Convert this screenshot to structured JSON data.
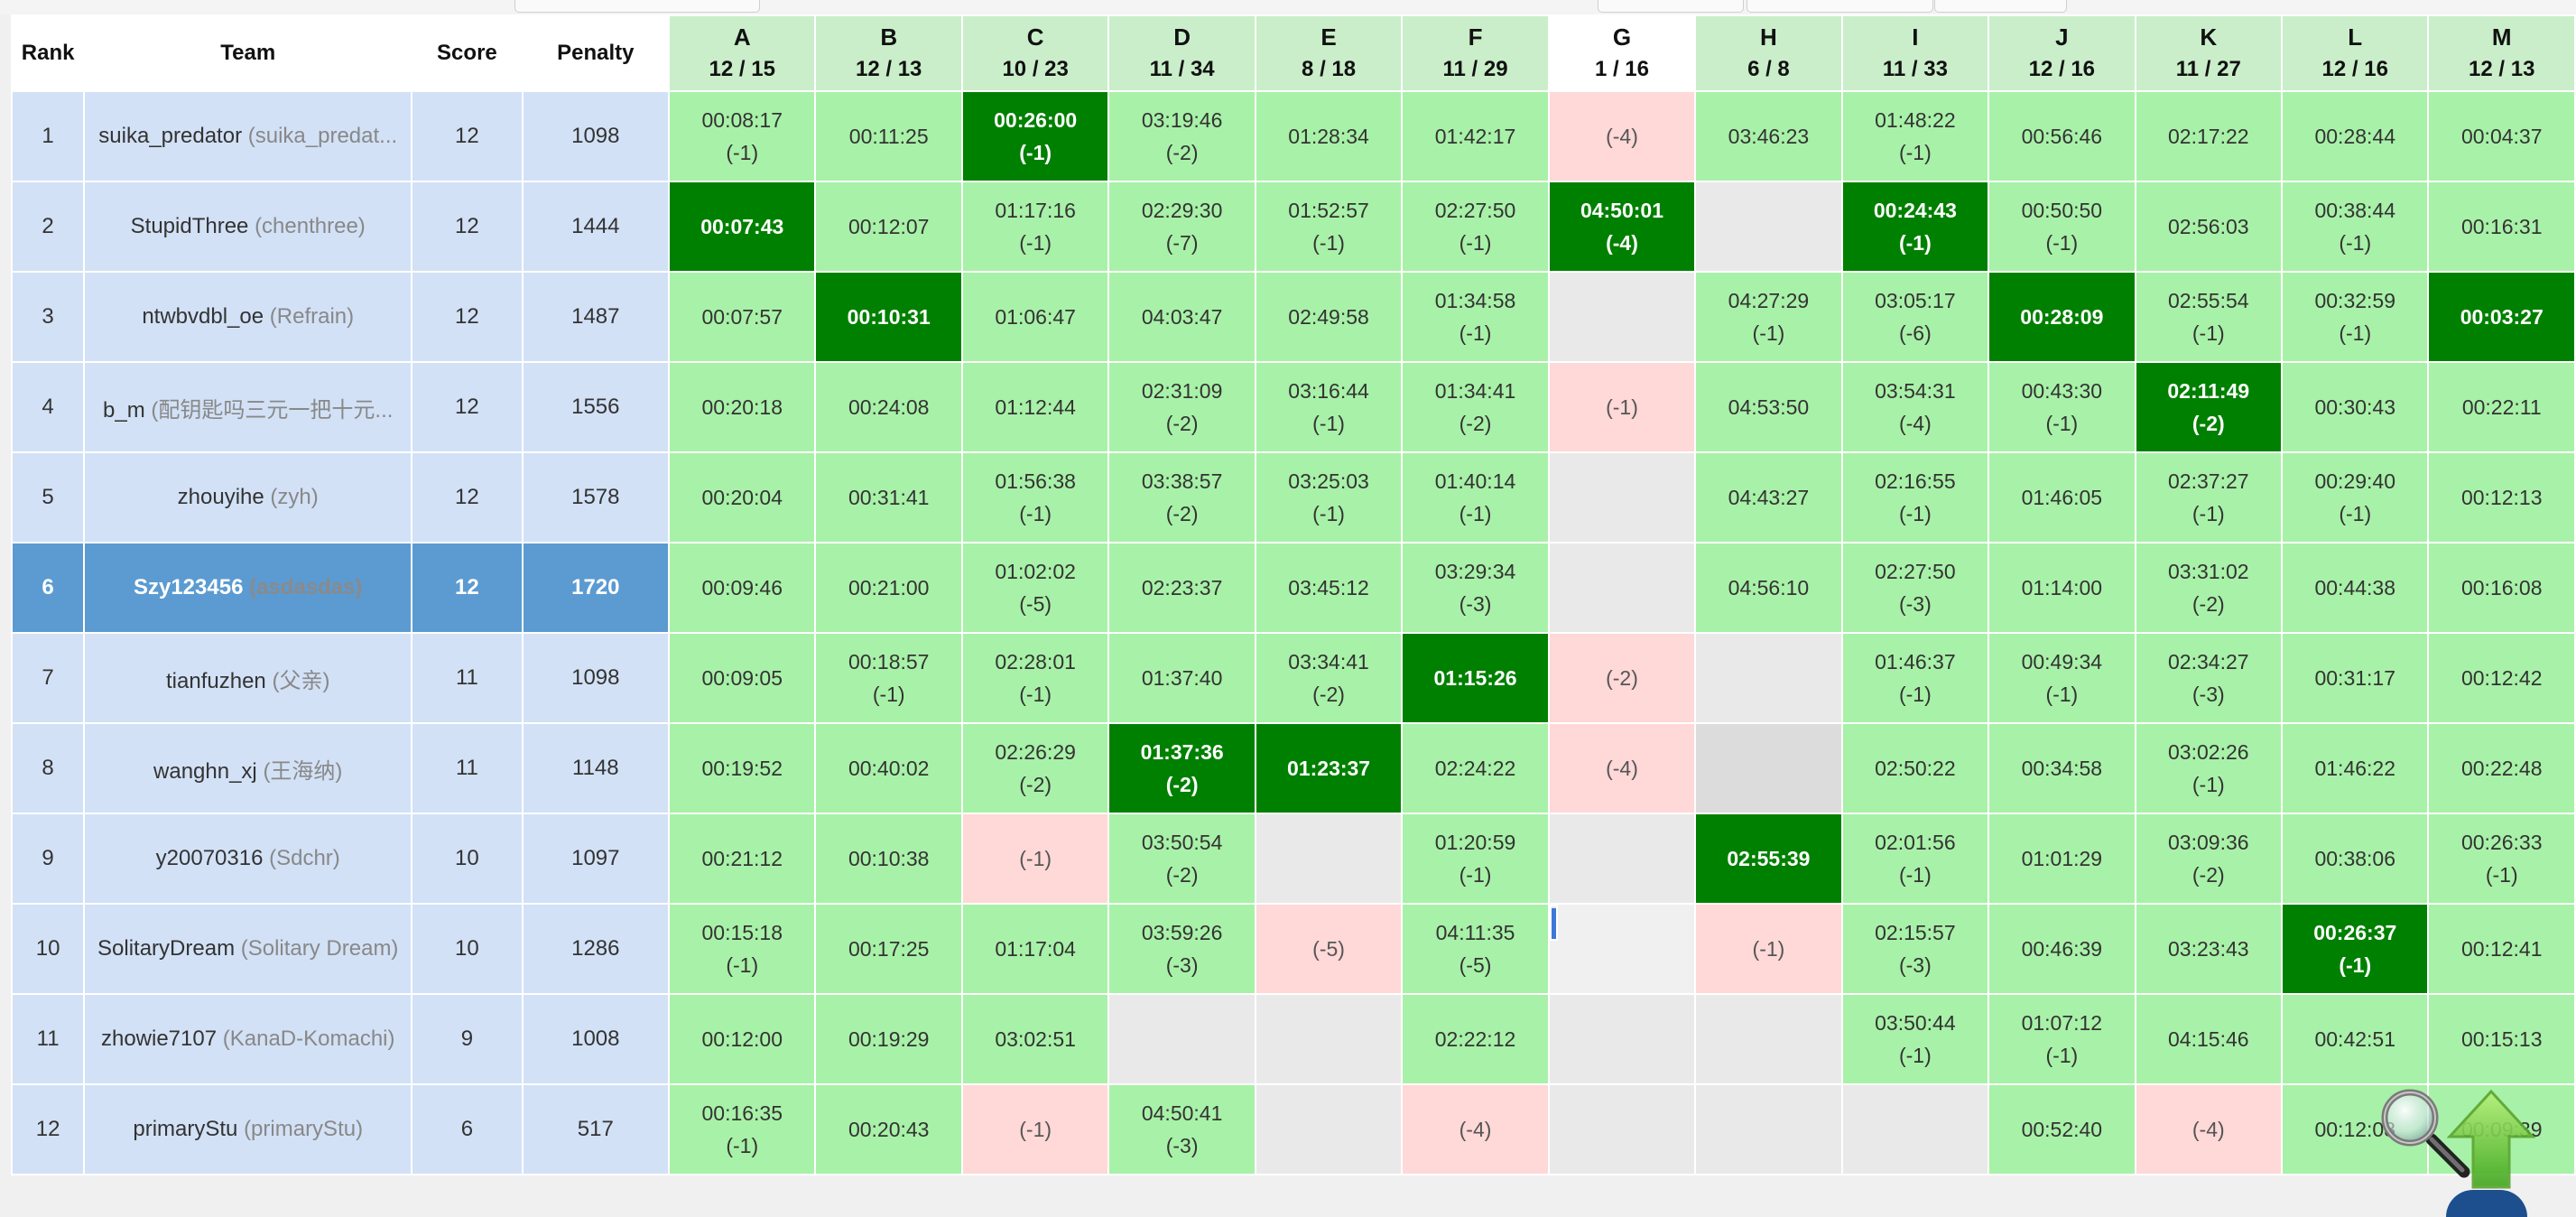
{
  "headers": {
    "rank": "Rank",
    "team": "Team",
    "score": "Score",
    "penalty": "Penalty"
  },
  "problems": [
    {
      "letter": "A",
      "ratio": "12 / 15"
    },
    {
      "letter": "B",
      "ratio": "12 / 13"
    },
    {
      "letter": "C",
      "ratio": "10 / 23"
    },
    {
      "letter": "D",
      "ratio": "11 / 34"
    },
    {
      "letter": "E",
      "ratio": "8 / 18"
    },
    {
      "letter": "F",
      "ratio": "11 / 29"
    },
    {
      "letter": "G",
      "ratio": "1 / 16"
    },
    {
      "letter": "H",
      "ratio": "6 / 8"
    },
    {
      "letter": "I",
      "ratio": "11 / 33"
    },
    {
      "letter": "J",
      "ratio": "12 / 16"
    },
    {
      "letter": "K",
      "ratio": "11 / 27"
    },
    {
      "letter": "L",
      "ratio": "12 / 16"
    },
    {
      "letter": "M",
      "ratio": "12 / 13"
    }
  ],
  "rows": [
    {
      "rank": "1",
      "name": "suika_predator",
      "alias": "(suika_predat...",
      "score": "12",
      "penalty": "1098",
      "cells": [
        {
          "s": "ac",
          "t": "00:08:17",
          "p": "(-1)"
        },
        {
          "s": "ac",
          "t": "00:11:25",
          "p": ""
        },
        {
          "s": "fb",
          "t": "00:26:00",
          "p": "(-1)"
        },
        {
          "s": "ac",
          "t": "03:19:46",
          "p": "(-2)"
        },
        {
          "s": "ac",
          "t": "01:28:34",
          "p": ""
        },
        {
          "s": "ac",
          "t": "01:42:17",
          "p": ""
        },
        {
          "s": "wa",
          "t": "",
          "p": "(-4)"
        },
        {
          "s": "ac",
          "t": "03:46:23",
          "p": ""
        },
        {
          "s": "ac",
          "t": "01:48:22",
          "p": "(-1)"
        },
        {
          "s": "ac",
          "t": "00:56:46",
          "p": ""
        },
        {
          "s": "ac",
          "t": "02:17:22",
          "p": ""
        },
        {
          "s": "ac",
          "t": "00:28:44",
          "p": ""
        },
        {
          "s": "ac",
          "t": "00:04:37",
          "p": ""
        }
      ]
    },
    {
      "rank": "2",
      "name": "StupidThree",
      "alias": "(chenthree)",
      "score": "12",
      "penalty": "1444",
      "cells": [
        {
          "s": "fb",
          "t": "00:07:43",
          "p": ""
        },
        {
          "s": "ac",
          "t": "00:12:07",
          "p": ""
        },
        {
          "s": "ac",
          "t": "01:17:16",
          "p": "(-1)"
        },
        {
          "s": "ac",
          "t": "02:29:30",
          "p": "(-7)"
        },
        {
          "s": "ac",
          "t": "01:52:57",
          "p": "(-1)"
        },
        {
          "s": "ac",
          "t": "02:27:50",
          "p": "(-1)"
        },
        {
          "s": "fb",
          "t": "04:50:01",
          "p": "(-4)"
        },
        {
          "s": "no",
          "t": "",
          "p": ""
        },
        {
          "s": "fb",
          "t": "00:24:43",
          "p": "(-1)"
        },
        {
          "s": "ac",
          "t": "00:50:50",
          "p": "(-1)"
        },
        {
          "s": "ac",
          "t": "02:56:03",
          "p": ""
        },
        {
          "s": "ac",
          "t": "00:38:44",
          "p": "(-1)"
        },
        {
          "s": "ac",
          "t": "00:16:31",
          "p": ""
        }
      ]
    },
    {
      "rank": "3",
      "name": "ntwbvdbl_oe",
      "alias": "(Refrain)",
      "score": "12",
      "penalty": "1487",
      "cells": [
        {
          "s": "ac",
          "t": "00:07:57",
          "p": ""
        },
        {
          "s": "fb",
          "t": "00:10:31",
          "p": ""
        },
        {
          "s": "ac",
          "t": "01:06:47",
          "p": ""
        },
        {
          "s": "ac",
          "t": "04:03:47",
          "p": ""
        },
        {
          "s": "ac",
          "t": "02:49:58",
          "p": ""
        },
        {
          "s": "ac",
          "t": "01:34:58",
          "p": "(-1)"
        },
        {
          "s": "no",
          "t": "",
          "p": ""
        },
        {
          "s": "ac",
          "t": "04:27:29",
          "p": "(-1)"
        },
        {
          "s": "ac",
          "t": "03:05:17",
          "p": "(-6)"
        },
        {
          "s": "fb",
          "t": "00:28:09",
          "p": ""
        },
        {
          "s": "ac",
          "t": "02:55:54",
          "p": "(-1)"
        },
        {
          "s": "ac",
          "t": "00:32:59",
          "p": "(-1)"
        },
        {
          "s": "fb",
          "t": "00:03:27",
          "p": ""
        }
      ]
    },
    {
      "rank": "4",
      "name": "b_m",
      "alias": "(配钥匙吗三元一把十元...",
      "score": "12",
      "penalty": "1556",
      "cells": [
        {
          "s": "ac",
          "t": "00:20:18",
          "p": ""
        },
        {
          "s": "ac",
          "t": "00:24:08",
          "p": ""
        },
        {
          "s": "ac",
          "t": "01:12:44",
          "p": ""
        },
        {
          "s": "ac",
          "t": "02:31:09",
          "p": "(-2)"
        },
        {
          "s": "ac",
          "t": "03:16:44",
          "p": "(-1)"
        },
        {
          "s": "ac",
          "t": "01:34:41",
          "p": "(-2)"
        },
        {
          "s": "wa",
          "t": "",
          "p": "(-1)"
        },
        {
          "s": "ac",
          "t": "04:53:50",
          "p": ""
        },
        {
          "s": "ac",
          "t": "03:54:31",
          "p": "(-4)"
        },
        {
          "s": "ac",
          "t": "00:43:30",
          "p": "(-1)"
        },
        {
          "s": "fb",
          "t": "02:11:49",
          "p": "(-2)"
        },
        {
          "s": "ac",
          "t": "00:30:43",
          "p": ""
        },
        {
          "s": "ac",
          "t": "00:22:11",
          "p": ""
        }
      ]
    },
    {
      "rank": "5",
      "name": "zhouyihe",
      "alias": "(zyh)",
      "score": "12",
      "penalty": "1578",
      "cells": [
        {
          "s": "ac",
          "t": "00:20:04",
          "p": ""
        },
        {
          "s": "ac",
          "t": "00:31:41",
          "p": ""
        },
        {
          "s": "ac",
          "t": "01:56:38",
          "p": "(-1)"
        },
        {
          "s": "ac",
          "t": "03:38:57",
          "p": "(-2)"
        },
        {
          "s": "ac",
          "t": "03:25:03",
          "p": "(-1)"
        },
        {
          "s": "ac",
          "t": "01:40:14",
          "p": "(-1)"
        },
        {
          "s": "no",
          "t": "",
          "p": ""
        },
        {
          "s": "ac",
          "t": "04:43:27",
          "p": ""
        },
        {
          "s": "ac",
          "t": "02:16:55",
          "p": "(-1)"
        },
        {
          "s": "ac",
          "t": "01:46:05",
          "p": ""
        },
        {
          "s": "ac",
          "t": "02:37:27",
          "p": "(-1)"
        },
        {
          "s": "ac",
          "t": "00:29:40",
          "p": "(-1)"
        },
        {
          "s": "ac",
          "t": "00:12:13",
          "p": ""
        }
      ]
    },
    {
      "rank": "6",
      "name": "Szy123456",
      "alias": "(asdasdas)",
      "score": "12",
      "penalty": "1720",
      "me": true,
      "cells": [
        {
          "s": "ac",
          "t": "00:09:46",
          "p": ""
        },
        {
          "s": "ac",
          "t": "00:21:00",
          "p": ""
        },
        {
          "s": "ac",
          "t": "01:02:02",
          "p": "(-5)"
        },
        {
          "s": "ac",
          "t": "02:23:37",
          "p": ""
        },
        {
          "s": "ac",
          "t": "03:45:12",
          "p": ""
        },
        {
          "s": "ac",
          "t": "03:29:34",
          "p": "(-3)"
        },
        {
          "s": "no",
          "t": "",
          "p": ""
        },
        {
          "s": "ac",
          "t": "04:56:10",
          "p": ""
        },
        {
          "s": "ac",
          "t": "02:27:50",
          "p": "(-3)"
        },
        {
          "s": "ac",
          "t": "01:14:00",
          "p": ""
        },
        {
          "s": "ac",
          "t": "03:31:02",
          "p": "(-2)"
        },
        {
          "s": "ac",
          "t": "00:44:38",
          "p": ""
        },
        {
          "s": "ac",
          "t": "00:16:08",
          "p": ""
        }
      ]
    },
    {
      "rank": "7",
      "name": "tianfuzhen",
      "alias": "(父亲)",
      "score": "11",
      "penalty": "1098",
      "cells": [
        {
          "s": "ac",
          "t": "00:09:05",
          "p": ""
        },
        {
          "s": "ac",
          "t": "00:18:57",
          "p": "(-1)"
        },
        {
          "s": "ac",
          "t": "02:28:01",
          "p": "(-1)"
        },
        {
          "s": "ac",
          "t": "01:37:40",
          "p": ""
        },
        {
          "s": "ac",
          "t": "03:34:41",
          "p": "(-2)"
        },
        {
          "s": "fb",
          "t": "01:15:26",
          "p": ""
        },
        {
          "s": "wa",
          "t": "",
          "p": "(-2)"
        },
        {
          "s": "no",
          "t": "",
          "p": ""
        },
        {
          "s": "ac",
          "t": "01:46:37",
          "p": "(-1)"
        },
        {
          "s": "ac",
          "t": "00:49:34",
          "p": "(-1)"
        },
        {
          "s": "ac",
          "t": "02:34:27",
          "p": "(-3)"
        },
        {
          "s": "ac",
          "t": "00:31:17",
          "p": ""
        },
        {
          "s": "ac",
          "t": "00:12:42",
          "p": ""
        }
      ]
    },
    {
      "rank": "8",
      "name": "wanghn_xj",
      "alias": "(王海纳)",
      "score": "11",
      "penalty": "1148",
      "cells": [
        {
          "s": "ac",
          "t": "00:19:52",
          "p": ""
        },
        {
          "s": "ac",
          "t": "00:40:02",
          "p": ""
        },
        {
          "s": "ac",
          "t": "02:26:29",
          "p": "(-2)"
        },
        {
          "s": "fb",
          "t": "01:37:36",
          "p": "(-2)"
        },
        {
          "s": "fb",
          "t": "01:23:37",
          "p": ""
        },
        {
          "s": "ac",
          "t": "02:24:22",
          "p": ""
        },
        {
          "s": "wa",
          "t": "",
          "p": "(-4)"
        },
        {
          "s": "no shade",
          "t": "",
          "p": ""
        },
        {
          "s": "ac",
          "t": "02:50:22",
          "p": ""
        },
        {
          "s": "ac",
          "t": "00:34:58",
          "p": ""
        },
        {
          "s": "ac",
          "t": "03:02:26",
          "p": "(-1)"
        },
        {
          "s": "ac",
          "t": "01:46:22",
          "p": ""
        },
        {
          "s": "ac",
          "t": "00:22:48",
          "p": ""
        }
      ]
    },
    {
      "rank": "9",
      "name": "y20070316",
      "alias": "(Sdchr)",
      "score": "10",
      "penalty": "1097",
      "cells": [
        {
          "s": "ac",
          "t": "00:21:12",
          "p": ""
        },
        {
          "s": "ac",
          "t": "00:10:38",
          "p": ""
        },
        {
          "s": "wa",
          "t": "",
          "p": "(-1)"
        },
        {
          "s": "ac",
          "t": "03:50:54",
          "p": "(-2)"
        },
        {
          "s": "no",
          "t": "",
          "p": ""
        },
        {
          "s": "ac",
          "t": "01:20:59",
          "p": "(-1)"
        },
        {
          "s": "no",
          "t": "",
          "p": ""
        },
        {
          "s": "fb",
          "t": "02:55:39",
          "p": ""
        },
        {
          "s": "ac",
          "t": "02:01:56",
          "p": "(-1)"
        },
        {
          "s": "ac",
          "t": "01:01:29",
          "p": ""
        },
        {
          "s": "ac",
          "t": "03:09:36",
          "p": "(-2)"
        },
        {
          "s": "ac",
          "t": "00:38:06",
          "p": ""
        },
        {
          "s": "ac",
          "t": "00:26:33",
          "p": "(-1)"
        }
      ]
    },
    {
      "rank": "10",
      "name": "SolitaryDream",
      "alias": "(Solitary Dream)",
      "score": "10",
      "penalty": "1286",
      "cells": [
        {
          "s": "ac",
          "t": "00:15:18",
          "p": "(-1)"
        },
        {
          "s": "ac",
          "t": "00:17:25",
          "p": ""
        },
        {
          "s": "ac",
          "t": "01:17:04",
          "p": ""
        },
        {
          "s": "ac",
          "t": "03:59:26",
          "p": "(-3)"
        },
        {
          "s": "wa",
          "t": "",
          "p": "(-5)"
        },
        {
          "s": "ac",
          "t": "04:11:35",
          "p": "(-5)"
        },
        {
          "s": "no caret",
          "t": "",
          "p": ""
        },
        {
          "s": "wa",
          "t": "",
          "p": "(-1)"
        },
        {
          "s": "ac",
          "t": "02:15:57",
          "p": "(-3)"
        },
        {
          "s": "ac",
          "t": "00:46:39",
          "p": ""
        },
        {
          "s": "ac",
          "t": "03:23:43",
          "p": ""
        },
        {
          "s": "fb",
          "t": "00:26:37",
          "p": "(-1)"
        },
        {
          "s": "ac",
          "t": "00:12:41",
          "p": ""
        }
      ]
    },
    {
      "rank": "11",
      "name": "zhowie7107",
      "alias": "(KanaD-Komachi)",
      "score": "9",
      "penalty": "1008",
      "cells": [
        {
          "s": "ac",
          "t": "00:12:00",
          "p": ""
        },
        {
          "s": "ac",
          "t": "00:19:29",
          "p": ""
        },
        {
          "s": "ac",
          "t": "03:02:51",
          "p": ""
        },
        {
          "s": "no",
          "t": "",
          "p": ""
        },
        {
          "s": "no",
          "t": "",
          "p": ""
        },
        {
          "s": "ac",
          "t": "02:22:12",
          "p": ""
        },
        {
          "s": "no",
          "t": "",
          "p": ""
        },
        {
          "s": "no",
          "t": "",
          "p": ""
        },
        {
          "s": "ac",
          "t": "03:50:44",
          "p": "(-1)"
        },
        {
          "s": "ac",
          "t": "01:07:12",
          "p": "(-1)"
        },
        {
          "s": "ac",
          "t": "04:15:46",
          "p": ""
        },
        {
          "s": "ac",
          "t": "00:42:51",
          "p": ""
        },
        {
          "s": "ac",
          "t": "00:15:13",
          "p": ""
        }
      ]
    },
    {
      "rank": "12",
      "name": "primaryStu",
      "alias": "(primaryStu)",
      "score": "6",
      "penalty": "517",
      "cells": [
        {
          "s": "ac",
          "t": "00:16:35",
          "p": "(-1)"
        },
        {
          "s": "ac",
          "t": "00:20:43",
          "p": ""
        },
        {
          "s": "wa",
          "t": "",
          "p": "(-1)"
        },
        {
          "s": "ac",
          "t": "04:50:41",
          "p": "(-3)"
        },
        {
          "s": "no",
          "t": "",
          "p": ""
        },
        {
          "s": "wa",
          "t": "",
          "p": "(-4)"
        },
        {
          "s": "no",
          "t": "",
          "p": ""
        },
        {
          "s": "no",
          "t": "",
          "p": ""
        },
        {
          "s": "no",
          "t": "",
          "p": ""
        },
        {
          "s": "ac",
          "t": "00:52:40",
          "p": ""
        },
        {
          "s": "wa",
          "t": "",
          "p": "(-4)"
        },
        {
          "s": "ac",
          "t": "00:12:08",
          "p": ""
        },
        {
          "s": "ac",
          "t": "00:09:39",
          "p": ""
        }
      ]
    }
  ],
  "controls": {
    "zoom_icon": "magnifier-icon",
    "top_icon": "up-arrow-icon"
  }
}
